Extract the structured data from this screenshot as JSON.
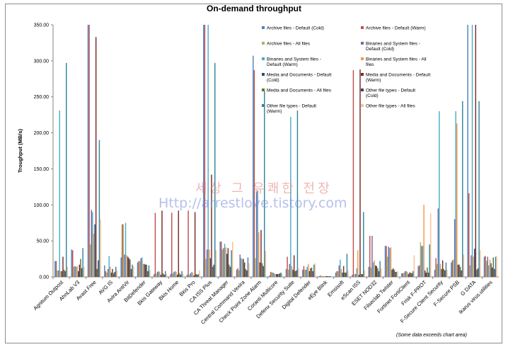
{
  "chart_data": {
    "type": "bar",
    "title": "On-demand throughput",
    "ylabel": "Troughput (MB/s)",
    "ylim": [
      0,
      350
    ],
    "yticks": [
      "0.00",
      "50.00",
      "100.00",
      "150.00",
      "200.00",
      "250.00",
      "300.00",
      "350.00"
    ],
    "grid": false,
    "legend_position": "top-right",
    "categories": [
      "Agnitum Outpost",
      "AhnLab V3",
      "Avast Free",
      "AVG IS",
      "Avira AntiVir",
      "BitDefender",
      "Bkis Gateway",
      "Bkis Home",
      "Bkis Pro",
      "CA ISS Plus",
      "CA Threat Manager",
      "Central Command Vexira",
      "Check Point Zone Alarm",
      "Coranti Multicore",
      "Defenx Security Suite",
      "Digital Defender",
      "eEye Blink",
      "Emsisoft",
      "eScan ISS",
      "ESET NOD32",
      "Filseclab Twister",
      "Fortinet FortiClient",
      "Frisk F-PROT",
      "F-Secure Client Security",
      "F-Secure PSB",
      "G DATA",
      "Ikarus virus.utilities"
    ],
    "series": [
      {
        "name": "Archive files - Default (Cold)",
        "color": "#4f81bd",
        "values": [
          22,
          38,
          360,
          16,
          27,
          20,
          4,
          4,
          3,
          360,
          49,
          10,
          307,
          2,
          11,
          10,
          1,
          6,
          3,
          14,
          43,
          5,
          15,
          10,
          20,
          360,
          28
        ]
      },
      {
        "name": "Archive files - Default (Warm)",
        "color": "#c0504d",
        "values": [
          22,
          37,
          360,
          8,
          73,
          22,
          89,
          89,
          92,
          360,
          49,
          12,
          287,
          7,
          28,
          15,
          2,
          8,
          287,
          57,
          43,
          5,
          16,
          26,
          23,
          116,
          29
        ]
      },
      {
        "name": "Archive files - All files",
        "color": "#9bbb59",
        "values": [
          9,
          14,
          45,
          6,
          73,
          22,
          5,
          5,
          3,
          25,
          38,
          9,
          26,
          6,
          10,
          10,
          1,
          8,
          4,
          13,
          28,
          6,
          48,
          18,
          24,
          16,
          22
        ]
      },
      {
        "name": "Binaries and System files - Default (Cold)",
        "color": "#8064a2",
        "values": [
          9,
          15,
          93,
          11,
          31,
          26,
          7,
          7,
          5,
          38,
          40,
          31,
          118,
          6,
          18,
          10,
          1,
          16,
          4,
          57,
          42,
          8,
          43,
          95,
          80,
          30,
          28
        ]
      },
      {
        "name": "Binaries and System files - Default (Warm)",
        "color": "#4bacc6",
        "values": [
          231,
          14,
          90,
          29,
          75,
          27,
          8,
          8,
          7,
          360,
          46,
          26,
          120,
          5,
          222,
          14,
          1,
          24,
          12,
          20,
          40,
          8,
          43,
          230,
          230,
          360,
          16
        ]
      },
      {
        "name": "Binaries and System files - All files",
        "color": "#f79646",
        "values": [
          8,
          15,
          60,
          14,
          30,
          18,
          7,
          7,
          6,
          38,
          41,
          25,
          62,
          4,
          15,
          18,
          1,
          11,
          37,
          23,
          41,
          7,
          100,
          18,
          213,
          28,
          24
        ]
      },
      {
        "name": "Media and Documents - Default (Cold)",
        "color": "#2c4d75",
        "values": [
          8,
          8,
          73,
          6,
          28,
          18,
          3,
          3,
          2,
          26,
          32,
          25,
          20,
          4,
          10,
          8,
          1,
          6,
          3,
          16,
          10,
          4,
          9,
          11,
          17,
          39,
          19
        ]
      },
      {
        "name": "Media and Documents - Default (Warm)",
        "color": "#772c2a",
        "values": [
          28,
          17,
          333,
          11,
          26,
          17,
          92,
          92,
          90,
          142,
          40,
          20,
          65,
          4,
          30,
          12,
          1,
          15,
          288,
          15,
          12,
          6,
          6,
          23,
          17,
          360,
          13
        ]
      },
      {
        "name": "Media and Documents - All files",
        "color": "#5f7530",
        "values": [
          10,
          25,
          11,
          5,
          24,
          17,
          5,
          5,
          4,
          14,
          17,
          11,
          19,
          4,
          8,
          13,
          1,
          6,
          4,
          12,
          10,
          6,
          13,
          11,
          14,
          10,
          27
        ]
      },
      {
        "name": "Other file types - Default (Cold)",
        "color": "#4d3b62",
        "values": [
          8,
          12,
          23,
          7,
          11,
          8,
          3,
          3,
          3,
          17,
          14,
          9,
          15,
          5,
          9,
          8,
          1,
          6,
          4,
          8,
          7,
          5,
          6,
          9,
          9,
          12,
          11
        ]
      },
      {
        "name": "Other file types - Default (Warm)",
        "color": "#31859c",
        "values": [
          297,
          40,
          190,
          14,
          17,
          16,
          8,
          8,
          4,
          297,
          37,
          27,
          258,
          6,
          231,
          17,
          1,
          32,
          90,
          22,
          7,
          8,
          45,
          20,
          244,
          244,
          28
        ]
      },
      {
        "name": "Other file types - All files",
        "color": "#fac08f",
        "values": [
          14,
          14,
          80,
          9,
          15,
          9,
          4,
          4,
          9,
          37,
          49,
          19,
          36,
          4,
          12,
          19,
          1,
          9,
          9,
          12,
          8,
          30,
          88,
          10,
          31,
          37,
          29
        ]
      }
    ],
    "annotations": [
      "(Some data  exceeds chart area)"
    ]
  },
  "watermark": {
    "line1": "세상 그 유쾌한 전장",
    "line2": "Http://arrestlove.tistory.com"
  }
}
